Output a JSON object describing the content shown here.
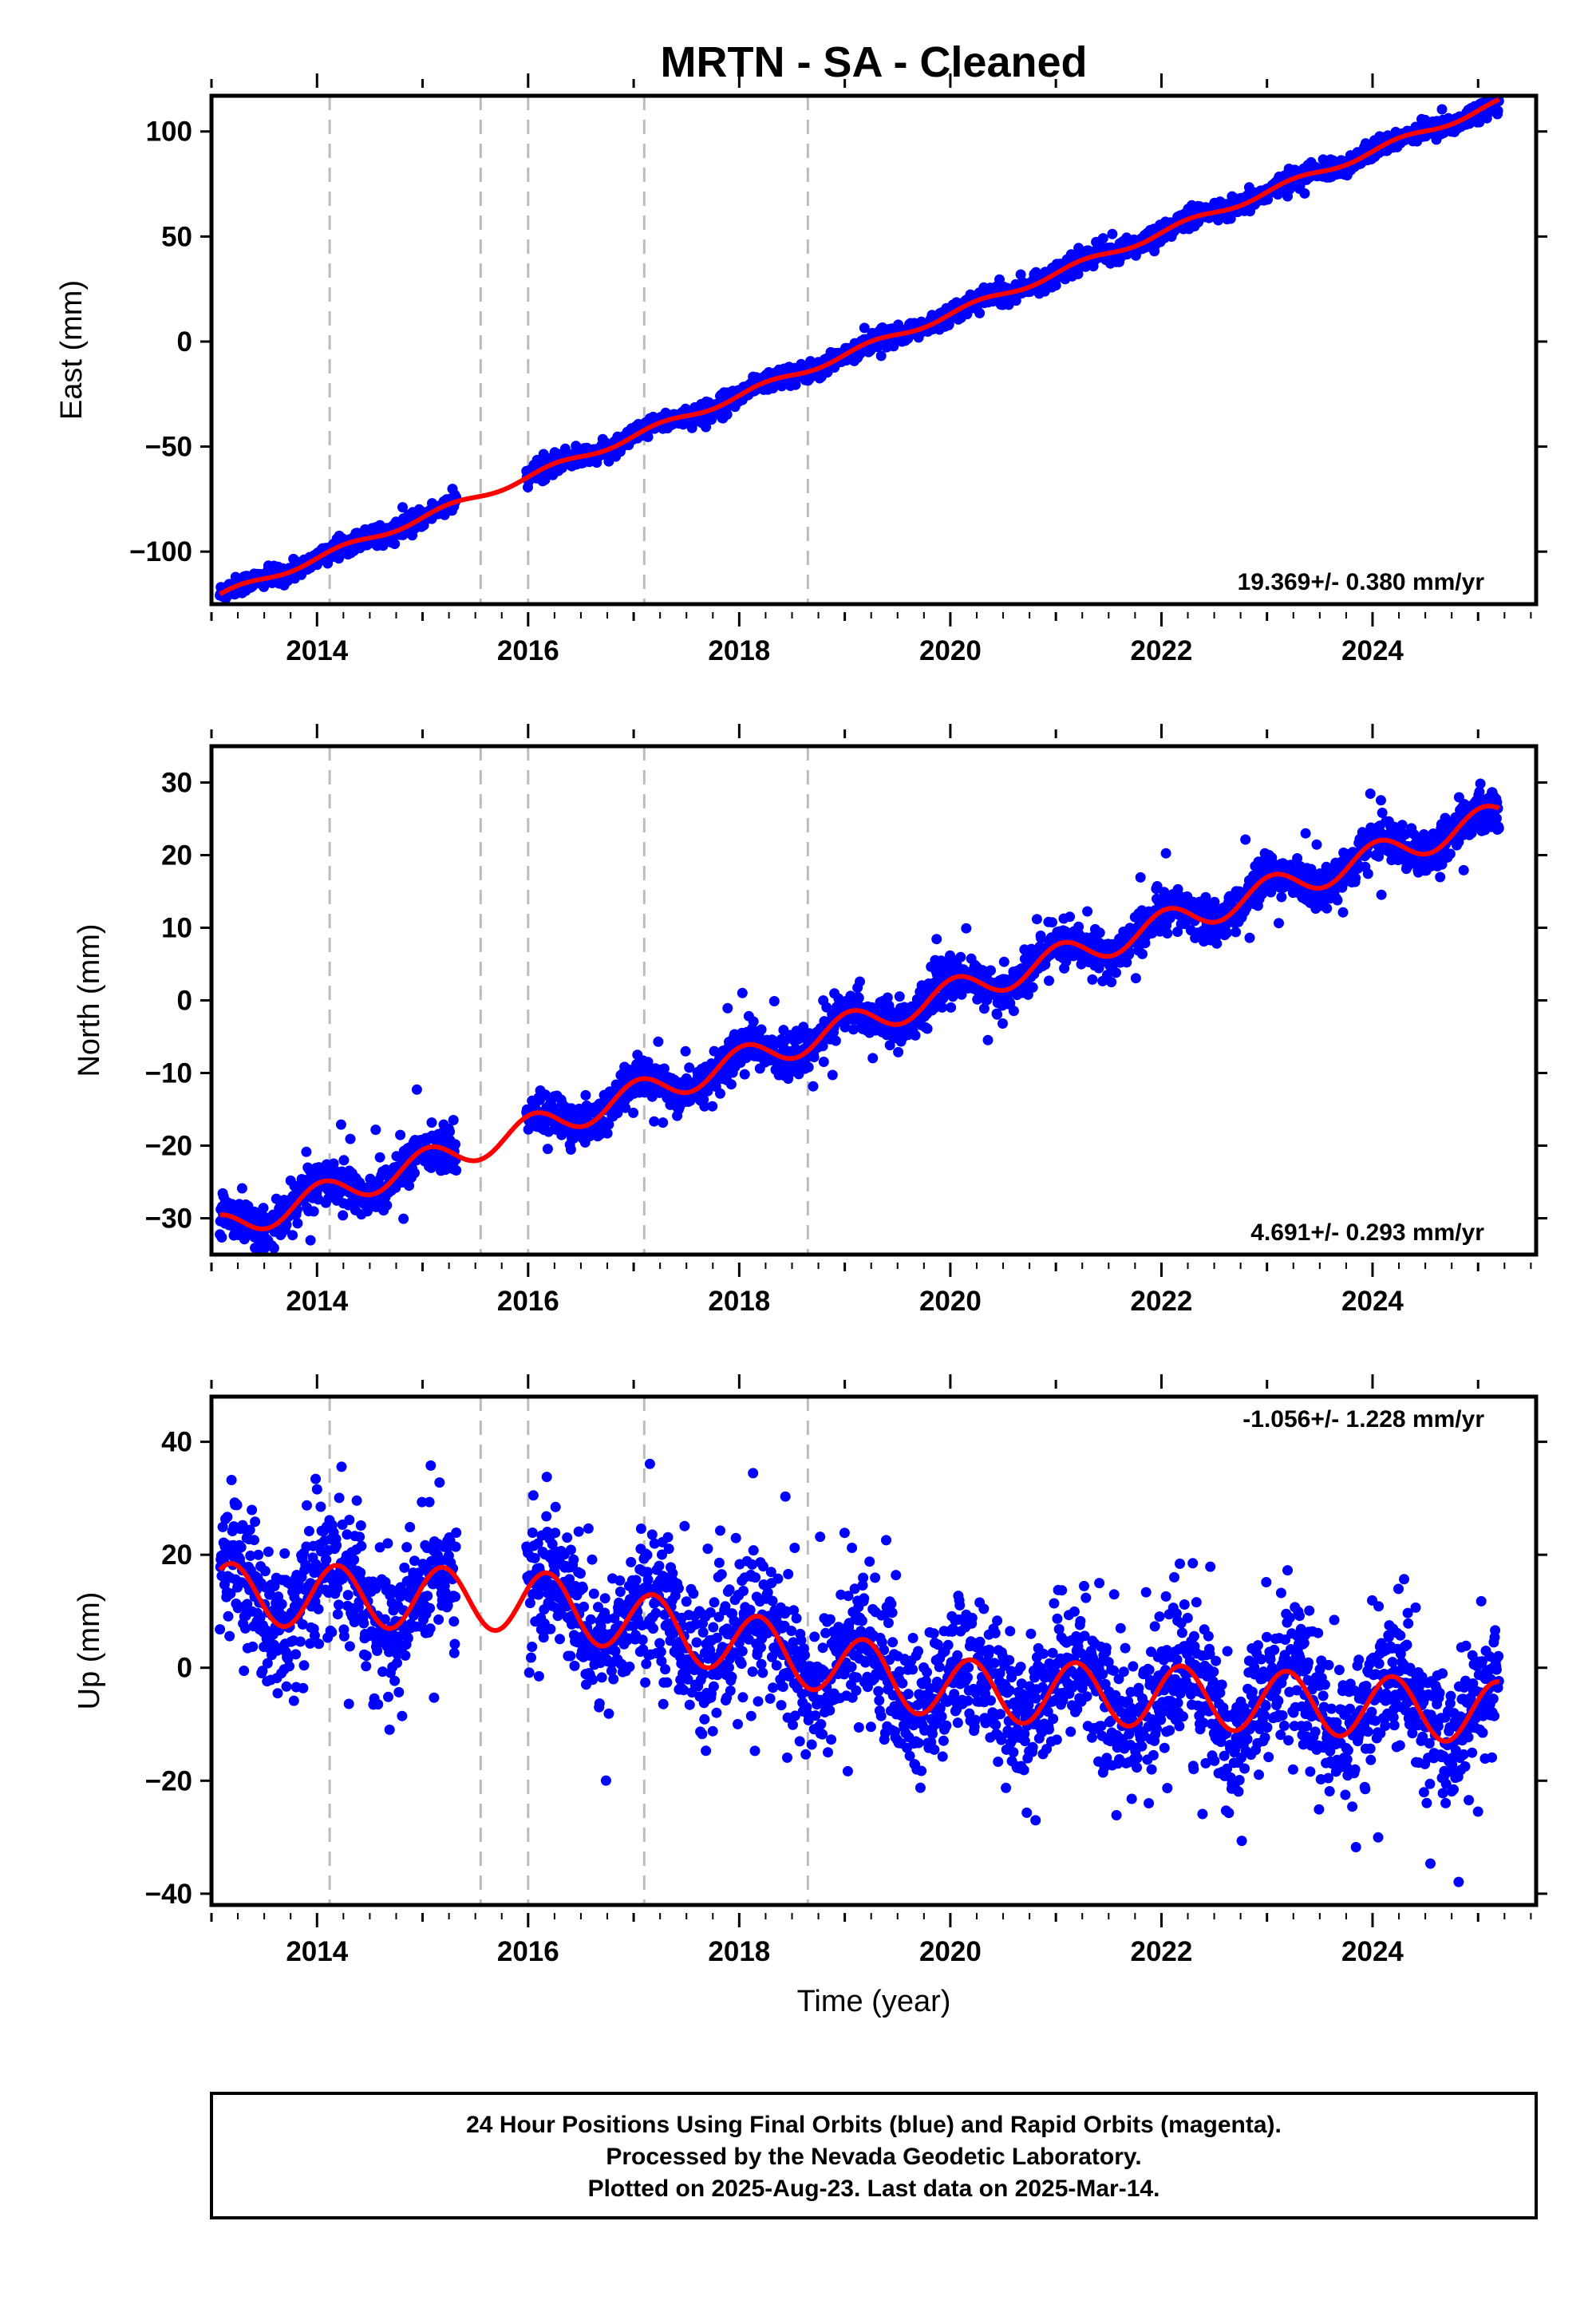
{
  "title": "MRTN  - SA - Cleaned",
  "colors": {
    "data": "#0000ff",
    "model": "#ff0000",
    "rapid": "#ff00ff",
    "events": "#bbbbbb",
    "frame": "#000000"
  },
  "chart_data": {
    "type": "scatter",
    "x_label": "Time (year)",
    "x_range": [
      2013.0,
      2025.55
    ],
    "x_ticks": [
      2014,
      2016,
      2018,
      2020,
      2022,
      2024
    ],
    "event_lines": [
      2014.12,
      2015.55,
      2016.0,
      2017.1,
      2018.65
    ],
    "data_start": 2013.08,
    "data_end": 2025.2,
    "gap": [
      2015.32,
      2015.98
    ],
    "panels": [
      {
        "name": "East",
        "ylabel": "East (mm)",
        "ylim": [
          -125,
          117
        ],
        "yticks": [
          -100,
          -50,
          0,
          50,
          100
        ],
        "rate_label": "19.369+/- 0.380 mm/yr",
        "rate_position": "bottom-right",
        "rate": 19.369,
        "offset": -121,
        "seasonal_amp": 1.6,
        "seasonal_phase": 0.0,
        "noise": 2.2,
        "outlier_rate": 0.01,
        "outlier_size": 5,
        "steps": []
      },
      {
        "name": "North",
        "ylabel": "North (mm)",
        "ylim": [
          -35,
          35
        ],
        "yticks": [
          -30,
          -20,
          -10,
          0,
          10,
          20,
          30
        ],
        "rate_label": "4.691+/- 0.293 mm/yr",
        "rate_position": "bottom-right",
        "rate": 4.691,
        "offset": -31.5,
        "seasonal_amp": 2.0,
        "seasonal_phase": 1.3,
        "noise": 1.4,
        "outlier_rate": 0.02,
        "outlier_size": 5,
        "steps": []
      },
      {
        "name": "Up",
        "ylabel": "Up (mm)",
        "ylim": [
          -42,
          48
        ],
        "yticks": [
          -40,
          -20,
          0,
          20,
          40
        ],
        "rate_label": "-1.056+/- 1.228 mm/yr",
        "rate_position": "top-right",
        "rate": -1.056,
        "offset": 13,
        "trend_shape": [
          [
            2013.08,
            13
          ],
          [
            2016.0,
            12
          ],
          [
            2018.6,
            2
          ],
          [
            2020.0,
            -4
          ],
          [
            2022.0,
            -5
          ],
          [
            2025.2,
            -8
          ]
        ],
        "seasonal_amp": 5.5,
        "seasonal_phase": 0.4,
        "noise": 6.0,
        "outlier_rate": 0.03,
        "outlier_size": 14,
        "steps": []
      }
    ]
  },
  "footer": {
    "line1": "24 Hour Positions Using Final Orbits (blue) and Rapid Orbits (magenta).",
    "line2": "Processed by the Nevada Geodetic Laboratory.",
    "line3": "Plotted on 2025-Aug-23. Last data on 2025-Mar-14."
  }
}
